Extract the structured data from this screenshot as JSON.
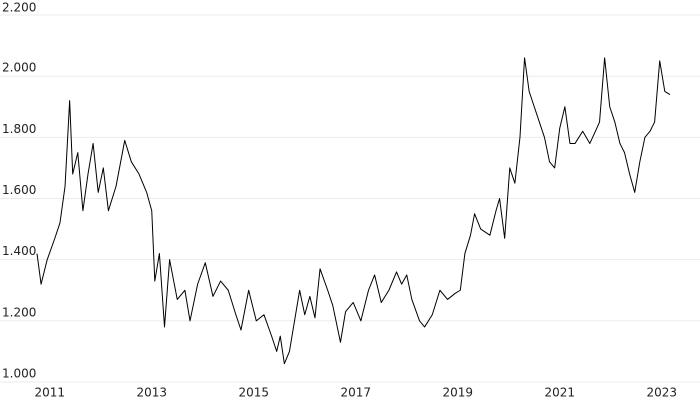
{
  "chart_data": {
    "type": "line",
    "x": [
      2010.75,
      2010.83,
      2010.95,
      2011.1,
      2011.2,
      2011.3,
      2011.39,
      2011.45,
      2011.55,
      2011.65,
      2011.75,
      2011.85,
      2011.95,
      2012.05,
      2012.15,
      2012.3,
      2012.47,
      2012.6,
      2012.75,
      2012.9,
      2013.0,
      2013.06,
      2013.15,
      2013.25,
      2013.35,
      2013.5,
      2013.65,
      2013.75,
      2013.9,
      2014.05,
      2014.2,
      2014.35,
      2014.5,
      2014.65,
      2014.75,
      2014.9,
      2015.05,
      2015.2,
      2015.35,
      2015.45,
      2015.52,
      2015.6,
      2015.7,
      2015.8,
      2015.9,
      2016.0,
      2016.1,
      2016.2,
      2016.3,
      2016.45,
      2016.55,
      2016.7,
      2016.8,
      2016.95,
      2017.1,
      2017.25,
      2017.37,
      2017.5,
      2017.65,
      2017.8,
      2017.9,
      2018.0,
      2018.1,
      2018.25,
      2018.35,
      2018.5,
      2018.65,
      2018.8,
      2018.95,
      2019.05,
      2019.14,
      2019.25,
      2019.33,
      2019.45,
      2019.63,
      2019.75,
      2019.82,
      2019.92,
      2020.02,
      2020.12,
      2020.22,
      2020.31,
      2020.4,
      2020.5,
      2020.6,
      2020.7,
      2020.8,
      2020.9,
      2021.0,
      2021.1,
      2021.2,
      2021.3,
      2021.45,
      2021.59,
      2021.7,
      2021.78,
      2021.88,
      2021.98,
      2022.08,
      2022.18,
      2022.27,
      2022.37,
      2022.47,
      2022.57,
      2022.67,
      2022.77,
      2022.86,
      2022.96,
      2023.06,
      2023.16
    ],
    "series": [
      {
        "color": "#000000",
        "values": [
          1420,
          1320,
          1400,
          1470,
          1520,
          1640,
          1920,
          1680,
          1750,
          1560,
          1680,
          1780,
          1620,
          1700,
          1560,
          1640,
          1790,
          1720,
          1680,
          1620,
          1560,
          1330,
          1420,
          1180,
          1400,
          1270,
          1300,
          1200,
          1320,
          1390,
          1280,
          1330,
          1300,
          1220,
          1170,
          1300,
          1200,
          1220,
          1150,
          1100,
          1150,
          1060,
          1100,
          1200,
          1300,
          1220,
          1280,
          1210,
          1370,
          1300,
          1250,
          1130,
          1230,
          1260,
          1200,
          1300,
          1350,
          1260,
          1300,
          1360,
          1320,
          1350,
          1270,
          1200,
          1180,
          1220,
          1300,
          1270,
          1290,
          1300,
          1420,
          1480,
          1550,
          1500,
          1480,
          1560,
          1600,
          1470,
          1700,
          1650,
          1800,
          2060,
          1950,
          1900,
          1850,
          1800,
          1720,
          1700,
          1830,
          1900,
          1780,
          1780,
          1820,
          1780,
          1820,
          1850,
          2060,
          1900,
          1850,
          1780,
          1750,
          1680,
          1620,
          1720,
          1800,
          1820,
          1850,
          2050,
          1950,
          1940
        ]
      }
    ],
    "xlim": [
      2010.75,
      2023.75
    ],
    "xticks": [
      2011,
      2013,
      2015,
      2017,
      2019,
      2021,
      2023
    ],
    "ylim": [
      1000,
      2200
    ],
    "yticks": [
      {
        "value": 1000,
        "label": "1.000"
      },
      {
        "value": 1200,
        "label": "1.200"
      },
      {
        "value": 1400,
        "label": "1.400"
      },
      {
        "value": 1600,
        "label": "1.600"
      },
      {
        "value": 1800,
        "label": "1.800"
      },
      {
        "value": 2000,
        "label": "2.000"
      },
      {
        "value": 2200,
        "label": "2.200"
      }
    ],
    "grid": true
  }
}
